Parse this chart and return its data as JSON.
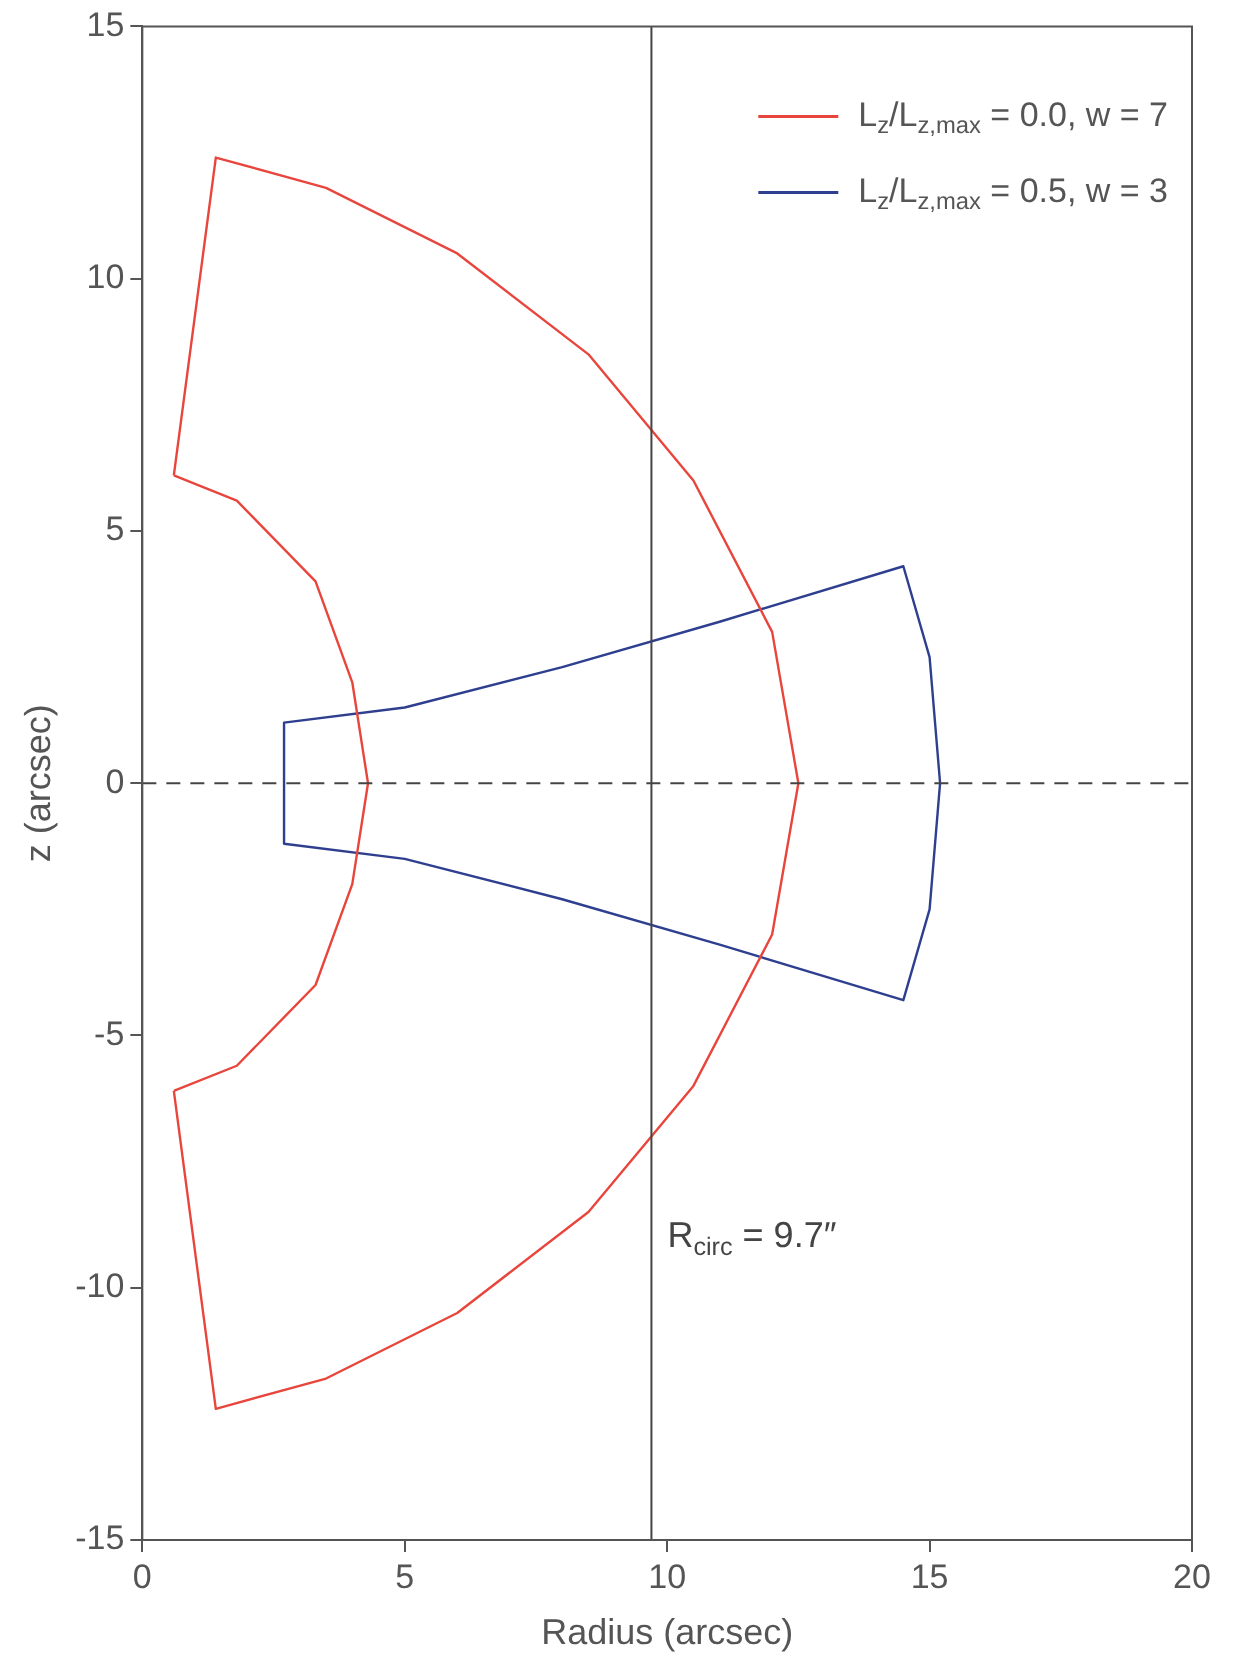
{
  "chart_data": {
    "type": "line",
    "xlabel": "Radius (arcsec)",
    "ylabel": "z (arcsec)",
    "xlim": [
      0,
      20
    ],
    "xticks": [
      0,
      5,
      10,
      15,
      20
    ],
    "ylim": [
      -15,
      15
    ],
    "yticks": [
      -15,
      -10,
      -5,
      0,
      5,
      10,
      15
    ],
    "grid": false,
    "legend": "top right",
    "marker": "none",
    "line_style": "solid",
    "series": [
      {
        "name": "L$_{z}$/L$_{z,max}$ = 0.0, w = 7",
        "color": "#e8463c",
        "x": [
          0.6,
          1.4,
          3.5,
          6,
          8.5,
          10.5,
          12,
          12.5,
          null,
          12.5,
          12,
          10.5,
          8.5,
          6,
          3.5,
          1.4,
          0.6,
          null,
          0.6,
          1.8,
          3.3,
          4,
          4.3,
          null,
          4.3,
          4,
          3.3,
          1.8,
          0.6
        ],
        "values": [
          6.1,
          12.4,
          11.8,
          10.5,
          8.5,
          6,
          3,
          0,
          null,
          0,
          -3,
          -6,
          -8.5,
          -10.5,
          -11.8,
          -12.4,
          -6.1,
          null,
          -6.1,
          -5.6,
          -4,
          -2,
          0,
          null,
          0,
          2,
          4,
          5.6,
          6.1
        ]
      },
      {
        "name": "L$_{z}$/L$_{z,max}$ = 0.5, w = 3",
        "color": "#2e3f8f",
        "x": [
          2.7,
          2.7,
          5,
          8,
          11,
          14.5,
          15,
          15.2,
          null,
          15.2,
          15,
          14.5,
          11,
          8,
          5,
          2.7,
          2.7
        ],
        "values": [
          0,
          1.2,
          1.5,
          2.3,
          3.2,
          4.3,
          2.5,
          0,
          null,
          0,
          -2.5,
          -4.3,
          -3.2,
          -2.3,
          -1.5,
          -1.2,
          0
        ]
      }
    ],
    "ref_lines": [
      {
        "axis": "y",
        "value": 0,
        "line_style": "dashed",
        "color": "#444444"
      },
      {
        "axis": "x",
        "value": 9.7,
        "label": "R$_{circ}$ = 9.7″",
        "color": "#444444",
        "line_style": "solid"
      }
    ]
  }
}
